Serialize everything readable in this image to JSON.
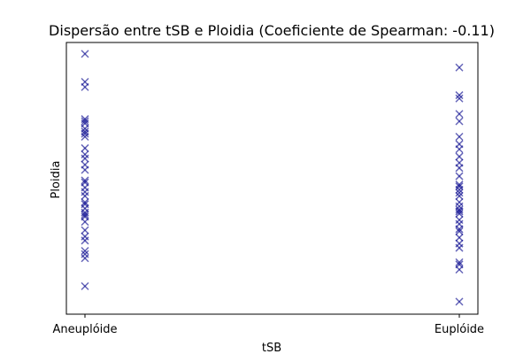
{
  "chart_data": {
    "type": "scatter",
    "title": "Dispersão entre tSB e Ploidia (Coeficiente de Spearman: -0.11)",
    "xlabel": "tSB",
    "ylabel": "Ploidia",
    "x_categories": [
      "Aneuplóide",
      "Euplóide"
    ],
    "y_ticks_shown": false,
    "marker": "x",
    "marker_color": "#00008b",
    "marker_alpha": 0.6,
    "ylim": [
      0,
      100
    ],
    "grid": false,
    "legend": "none",
    "points": [
      {
        "x": "Aneuplóide",
        "y": 95.8
      },
      {
        "x": "Aneuplóide",
        "y": 85.5
      },
      {
        "x": "Aneuplóide",
        "y": 83.6
      },
      {
        "x": "Aneuplóide",
        "y": 71.8
      },
      {
        "x": "Aneuplóide",
        "y": 71.0
      },
      {
        "x": "Aneuplóide",
        "y": 70.2
      },
      {
        "x": "Aneuplóide",
        "y": 68.3
      },
      {
        "x": "Aneuplóide",
        "y": 67.2
      },
      {
        "x": "Aneuplóide",
        "y": 66.4
      },
      {
        "x": "Aneuplóide",
        "y": 65.3
      },
      {
        "x": "Aneuplóide",
        "y": 61.1
      },
      {
        "x": "Aneuplóide",
        "y": 58.8
      },
      {
        "x": "Aneuplóide",
        "y": 57.3
      },
      {
        "x": "Aneuplóide",
        "y": 55.0
      },
      {
        "x": "Aneuplóide",
        "y": 53.1
      },
      {
        "x": "Aneuplóide",
        "y": 49.2
      },
      {
        "x": "Aneuplóide",
        "y": 48.5
      },
      {
        "x": "Aneuplóide",
        "y": 46.6
      },
      {
        "x": "Aneuplóide",
        "y": 45.0
      },
      {
        "x": "Aneuplóide",
        "y": 43.5
      },
      {
        "x": "Aneuplóide",
        "y": 41.2
      },
      {
        "x": "Aneuplóide",
        "y": 40.5
      },
      {
        "x": "Aneuplóide",
        "y": 38.9
      },
      {
        "x": "Aneuplóide",
        "y": 37.4
      },
      {
        "x": "Aneuplóide",
        "y": 36.6
      },
      {
        "x": "Aneuplóide",
        "y": 35.9
      },
      {
        "x": "Aneuplóide",
        "y": 34.0
      },
      {
        "x": "Aneuplóide",
        "y": 30.9
      },
      {
        "x": "Aneuplóide",
        "y": 28.6
      },
      {
        "x": "Aneuplóide",
        "y": 27.1
      },
      {
        "x": "Aneuplóide",
        "y": 23.3
      },
      {
        "x": "Aneuplóide",
        "y": 22.1
      },
      {
        "x": "Aneuplóide",
        "y": 20.6
      },
      {
        "x": "Aneuplóide",
        "y": 10.3
      },
      {
        "x": "Euplóide",
        "y": 90.8
      },
      {
        "x": "Euplóide",
        "y": 80.6
      },
      {
        "x": "Euplóide",
        "y": 79.4
      },
      {
        "x": "Euplóide",
        "y": 73.7
      },
      {
        "x": "Euplóide",
        "y": 71.0
      },
      {
        "x": "Euplóide",
        "y": 65.3
      },
      {
        "x": "Euplóide",
        "y": 62.6
      },
      {
        "x": "Euplóide",
        "y": 60.7
      },
      {
        "x": "Euplóide",
        "y": 58.0
      },
      {
        "x": "Euplóide",
        "y": 55.7
      },
      {
        "x": "Euplóide",
        "y": 53.8
      },
      {
        "x": "Euplóide",
        "y": 50.8
      },
      {
        "x": "Euplóide",
        "y": 47.7
      },
      {
        "x": "Euplóide",
        "y": 47.0
      },
      {
        "x": "Euplóide",
        "y": 45.8
      },
      {
        "x": "Euplóide",
        "y": 44.7
      },
      {
        "x": "Euplóide",
        "y": 43.5
      },
      {
        "x": "Euplóide",
        "y": 41.2
      },
      {
        "x": "Euplóide",
        "y": 39.7
      },
      {
        "x": "Euplóide",
        "y": 38.5
      },
      {
        "x": "Euplóide",
        "y": 37.8
      },
      {
        "x": "Euplóide",
        "y": 37.0
      },
      {
        "x": "Euplóide",
        "y": 34.7
      },
      {
        "x": "Euplóide",
        "y": 33.2
      },
      {
        "x": "Euplóide",
        "y": 31.3
      },
      {
        "x": "Euplóide",
        "y": 30.5
      },
      {
        "x": "Euplóide",
        "y": 28.2
      },
      {
        "x": "Euplóide",
        "y": 26.0
      },
      {
        "x": "Euplóide",
        "y": 24.4
      },
      {
        "x": "Euplóide",
        "y": 19.1
      },
      {
        "x": "Euplóide",
        "y": 18.3
      },
      {
        "x": "Euplóide",
        "y": 16.4
      },
      {
        "x": "Euplóide",
        "y": 4.6
      }
    ]
  }
}
